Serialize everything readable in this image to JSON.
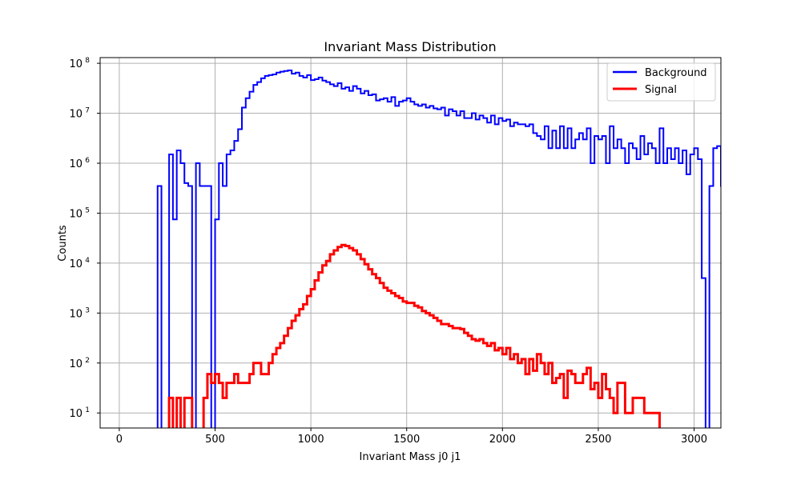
{
  "chart_data": {
    "type": "line",
    "title": "Invariant Mass Distribution",
    "xlabel": "Invariant Mass j0 j1",
    "ylabel": "Counts",
    "xlim": [
      -100,
      3140
    ],
    "ylim": [
      5,
      130000000
    ],
    "yscale": "log",
    "grid": true,
    "legend_position": "top-right",
    "x_ticks": [
      0,
      500,
      1000,
      1500,
      2000,
      2500,
      3000
    ],
    "y_ticks": [
      {
        "value": 10,
        "base": "10",
        "exp": "1"
      },
      {
        "value": 100,
        "base": "10",
        "exp": "2"
      },
      {
        "value": 1000,
        "base": "10",
        "exp": "3"
      },
      {
        "value": 10000,
        "base": "10",
        "exp": "4"
      },
      {
        "value": 100000,
        "base": "10",
        "exp": "5"
      },
      {
        "value": 1000000,
        "base": "10",
        "exp": "6"
      },
      {
        "value": 10000000,
        "base": "10",
        "exp": "7"
      },
      {
        "value": 100000000,
        "base": "10",
        "exp": "8"
      }
    ],
    "bin_start": 0,
    "bin_width": 20,
    "series": [
      {
        "name": "Background",
        "color": "#0000ff",
        "values": [
          0,
          0,
          0,
          0,
          0,
          0,
          0,
          0,
          0,
          0,
          350000,
          0,
          0,
          1500000,
          75000,
          1800000,
          1000000,
          400000,
          350000,
          0,
          1000000,
          350000,
          350000,
          350000,
          0,
          75000,
          1000000,
          350000,
          1500000,
          1800000,
          2800000,
          4800000,
          13000000,
          20000000,
          27000000,
          37000000,
          42000000,
          50000000,
          56000000,
          58000000,
          60000000,
          65000000,
          68000000,
          70000000,
          72000000,
          62000000,
          65000000,
          56000000,
          52000000,
          58000000,
          46000000,
          48000000,
          52000000,
          45000000,
          42000000,
          38000000,
          35000000,
          40000000,
          31000000,
          33000000,
          28000000,
          35000000,
          31000000,
          25000000,
          28000000,
          23000000,
          24000000,
          18000000,
          19000000,
          20000000,
          17000000,
          21000000,
          14000000,
          17000000,
          18000000,
          20000000,
          17000000,
          15000000,
          14000000,
          15000000,
          13000000,
          14000000,
          12500000,
          12000000,
          13000000,
          9000000,
          12000000,
          11000000,
          9000000,
          11000000,
          8000000,
          8000000,
          10000000,
          7500000,
          9000000,
          8000000,
          6500000,
          9000000,
          6000000,
          8000000,
          7000000,
          7500000,
          5500000,
          6500000,
          6000000,
          6000000,
          5500000,
          6000000,
          4000000,
          3500000,
          3000000,
          5500000,
          2000000,
          4500000,
          2000000,
          5500000,
          2000000,
          5000000,
          2000000,
          3000000,
          4000000,
          3000000,
          5000000,
          1000000,
          3500000,
          3000000,
          3500000,
          1000000,
          5500000,
          2000000,
          3000000,
          2000000,
          1000000,
          2500000,
          2000000,
          1200000,
          3500000,
          1500000,
          2500000,
          2000000,
          1000000,
          5000000,
          1000000,
          2000000,
          1200000,
          2000000,
          1000000,
          1800000,
          600000,
          1500000,
          2000000,
          1200000,
          5000,
          0,
          350000,
          2000000,
          2200000,
          350000
        ]
      },
      {
        "name": "Signal",
        "color": "#ff0000",
        "values": [
          0,
          0,
          0,
          0,
          0,
          0,
          0,
          0,
          0,
          0,
          0,
          0,
          0,
          20,
          0,
          20,
          0,
          20,
          20,
          0,
          0,
          0,
          20,
          60,
          40,
          60,
          40,
          20,
          40,
          40,
          60,
          40,
          40,
          40,
          60,
          100,
          100,
          60,
          60,
          100,
          150,
          200,
          250,
          350,
          500,
          700,
          900,
          1200,
          1500,
          2200,
          3000,
          4500,
          6500,
          9000,
          11000,
          15000,
          18000,
          21000,
          23000,
          22000,
          20000,
          18000,
          15000,
          12000,
          9500,
          7500,
          6000,
          5000,
          4000,
          3200,
          2800,
          2500,
          2200,
          2000,
          1700,
          1600,
          1600,
          1400,
          1300,
          1100,
          1000,
          900,
          800,
          700,
          600,
          600,
          550,
          500,
          500,
          480,
          400,
          350,
          300,
          280,
          300,
          250,
          220,
          250,
          180,
          200,
          150,
          200,
          120,
          150,
          100,
          120,
          60,
          120,
          70,
          150,
          100,
          60,
          100,
          40,
          50,
          60,
          20,
          70,
          60,
          40,
          40,
          60,
          80,
          30,
          40,
          20,
          60,
          30,
          20,
          10,
          40,
          40,
          10,
          10,
          20,
          20,
          20,
          10,
          10,
          10,
          10,
          0,
          0,
          0,
          0,
          0,
          0,
          0,
          0,
          0,
          0,
          0
        ]
      }
    ]
  }
}
